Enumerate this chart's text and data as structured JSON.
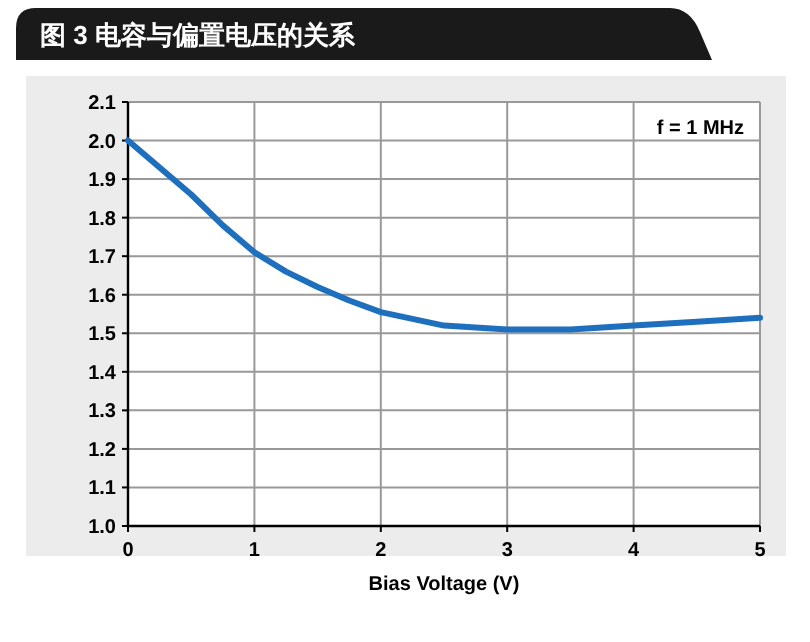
{
  "chart_data": {
    "type": "line",
    "title": "图 3 电容与偏置电压的关系",
    "xlabel": "Bias Voltage (V)",
    "annotations": [
      "f = 1 MHz"
    ],
    "series": [
      {
        "color": "#1f6fbf",
        "x": [
          0,
          0.25,
          0.5,
          0.75,
          1,
          1.25,
          1.5,
          1.75,
          2,
          2.5,
          3,
          3.5,
          4,
          4.5,
          5
        ],
        "values": [
          2.0,
          1.93,
          1.86,
          1.78,
          1.71,
          1.66,
          1.62,
          1.585,
          1.555,
          1.52,
          1.51,
          1.51,
          1.52,
          1.53,
          1.54
        ]
      }
    ],
    "xlim": [
      0,
      5
    ],
    "xticks": [
      0,
      1,
      2,
      3,
      4,
      5
    ],
    "ylim": [
      1.0,
      2.1
    ],
    "yticks": [
      {
        "value": 1.0,
        "label": "1.0"
      },
      {
        "value": 1.1,
        "label": "1.1"
      },
      {
        "value": 1.2,
        "label": "1.2"
      },
      {
        "value": 1.3,
        "label": "1.3"
      },
      {
        "value": 1.4,
        "label": "1.4"
      },
      {
        "value": 1.5,
        "label": "1.5"
      },
      {
        "value": 1.6,
        "label": "1.6"
      },
      {
        "value": 1.7,
        "label": "1.7"
      },
      {
        "value": 1.8,
        "label": "1.8"
      },
      {
        "value": 1.9,
        "label": "1.9"
      },
      {
        "value": 2.0,
        "label": "2.0"
      },
      {
        "value": 2.1,
        "label": "2.1"
      }
    ],
    "grid": true,
    "marker": "none",
    "line_style": "solid"
  }
}
